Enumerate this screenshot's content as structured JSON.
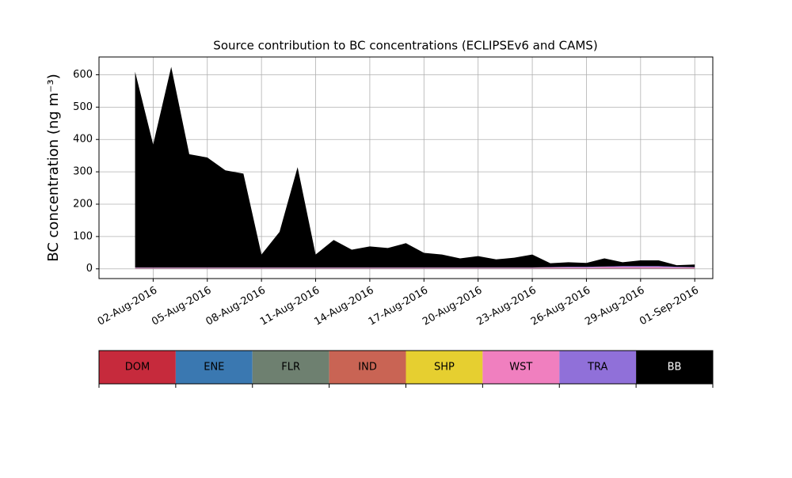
{
  "chart_data": {
    "type": "stacked_area",
    "title": "Source contribution to BC concentrations (ECLIPSEv6 and CAMS)",
    "ylabel": "BC concentration (ng m⁻³)",
    "x": [
      "2016-08-01",
      "2016-08-02",
      "2016-08-03",
      "2016-08-04",
      "2016-08-05",
      "2016-08-06",
      "2016-08-07",
      "2016-08-08",
      "2016-08-09",
      "2016-08-10",
      "2016-08-11",
      "2016-08-12",
      "2016-08-13",
      "2016-08-14",
      "2016-08-15",
      "2016-08-16",
      "2016-08-17",
      "2016-08-18",
      "2016-08-19",
      "2016-08-20",
      "2016-08-21",
      "2016-08-22",
      "2016-08-23",
      "2016-08-24",
      "2016-08-25",
      "2016-08-26",
      "2016-08-27",
      "2016-08-28",
      "2016-08-29",
      "2016-08-30",
      "2016-08-31",
      "2016-09-01"
    ],
    "series": [
      {
        "name": "DOM",
        "color": "#c62a3c",
        "values": [
          1,
          1,
          1,
          1,
          1,
          1,
          1,
          1,
          1,
          1,
          1,
          1,
          1,
          1,
          1,
          1,
          1,
          1,
          1,
          1,
          1,
          1,
          1,
          1,
          1,
          1,
          1,
          1,
          1,
          1,
          1,
          1
        ]
      },
      {
        "name": "ENE",
        "color": "#3a78b1",
        "values": [
          0.5,
          0.5,
          0.5,
          0.5,
          0.5,
          0.5,
          0.5,
          0.5,
          0.5,
          0.5,
          0.5,
          0.5,
          0.5,
          0.5,
          0.5,
          0.5,
          0.5,
          0.5,
          0.5,
          0.5,
          0.5,
          0.5,
          0.5,
          0.5,
          0.5,
          0.5,
          0.5,
          0.5,
          0.5,
          0.5,
          0.5,
          0.5
        ]
      },
      {
        "name": "FLR",
        "color": "#6e8070",
        "values": [
          0.2,
          0.2,
          0.2,
          0.2,
          0.2,
          0.2,
          0.2,
          0.2,
          0.2,
          0.2,
          0.2,
          0.2,
          0.2,
          0.2,
          0.2,
          0.2,
          0.2,
          0.2,
          0.2,
          0.2,
          0.2,
          0.2,
          0.2,
          0.2,
          0.2,
          0.2,
          0.2,
          0.2,
          0.2,
          0.2,
          0.2,
          0.2
        ]
      },
      {
        "name": "IND",
        "color": "#c96454",
        "values": [
          0.5,
          0.5,
          0.5,
          0.5,
          0.5,
          0.5,
          0.5,
          0.5,
          0.5,
          0.5,
          0.5,
          0.5,
          0.5,
          0.5,
          0.5,
          0.5,
          0.5,
          0.5,
          0.5,
          0.5,
          0.5,
          0.5,
          0.5,
          0.5,
          0.5,
          0.5,
          0.5,
          0.5,
          0.5,
          0.5,
          0.5,
          0.5
        ]
      },
      {
        "name": "SHP",
        "color": "#e6cf30",
        "values": [
          0.2,
          0.2,
          0.2,
          0.2,
          0.2,
          0.2,
          0.2,
          0.2,
          0.2,
          0.2,
          0.2,
          0.2,
          0.2,
          0.2,
          0.2,
          0.2,
          0.2,
          0.2,
          0.2,
          0.2,
          0.2,
          0.2,
          0.2,
          0.2,
          0.2,
          0.2,
          0.2,
          0.2,
          0.2,
          0.2,
          0.2,
          0.2
        ]
      },
      {
        "name": "WST",
        "color": "#f07fbf",
        "values": [
          1,
          1,
          1,
          1,
          1,
          1,
          1,
          1,
          1,
          1,
          1,
          1,
          1,
          1,
          1,
          1,
          1,
          1,
          1,
          1,
          1,
          1,
          1,
          2,
          2,
          2,
          3,
          3,
          3,
          3,
          2,
          2
        ]
      },
      {
        "name": "TRA",
        "color": "#9070d9",
        "values": [
          1,
          1,
          1,
          1,
          1,
          1,
          1,
          1,
          1,
          1,
          1,
          1,
          1,
          1,
          1,
          1,
          1,
          1,
          1,
          1,
          1,
          1,
          1,
          1,
          2,
          2,
          2,
          3,
          3,
          3,
          2,
          1
        ]
      },
      {
        "name": "BB",
        "color": "#000000",
        "values": [
          605,
          380,
          620,
          350,
          340,
          300,
          290,
          40,
          110,
          310,
          40,
          85,
          55,
          65,
          60,
          75,
          45,
          40,
          28,
          35,
          25,
          30,
          40,
          12,
          14,
          12,
          25,
          12,
          18,
          18,
          5,
          8
        ]
      }
    ],
    "xlim": [
      "2016-07-30",
      "2016-09-02"
    ],
    "xticks": [
      {
        "value": "2016-08-02",
        "label": "02-Aug-2016"
      },
      {
        "value": "2016-08-05",
        "label": "05-Aug-2016"
      },
      {
        "value": "2016-08-08",
        "label": "08-Aug-2016"
      },
      {
        "value": "2016-08-11",
        "label": "11-Aug-2016"
      },
      {
        "value": "2016-08-14",
        "label": "14-Aug-2016"
      },
      {
        "value": "2016-08-17",
        "label": "17-Aug-2016"
      },
      {
        "value": "2016-08-20",
        "label": "20-Aug-2016"
      },
      {
        "value": "2016-08-23",
        "label": "23-Aug-2016"
      },
      {
        "value": "2016-08-26",
        "label": "26-Aug-2016"
      },
      {
        "value": "2016-08-29",
        "label": "29-Aug-2016"
      },
      {
        "value": "2016-09-01",
        "label": "01-Sep-2016"
      }
    ],
    "ylim": [
      -30,
      655
    ],
    "yticks": [
      0,
      100,
      200,
      300,
      400,
      500,
      600
    ],
    "grid": true
  }
}
